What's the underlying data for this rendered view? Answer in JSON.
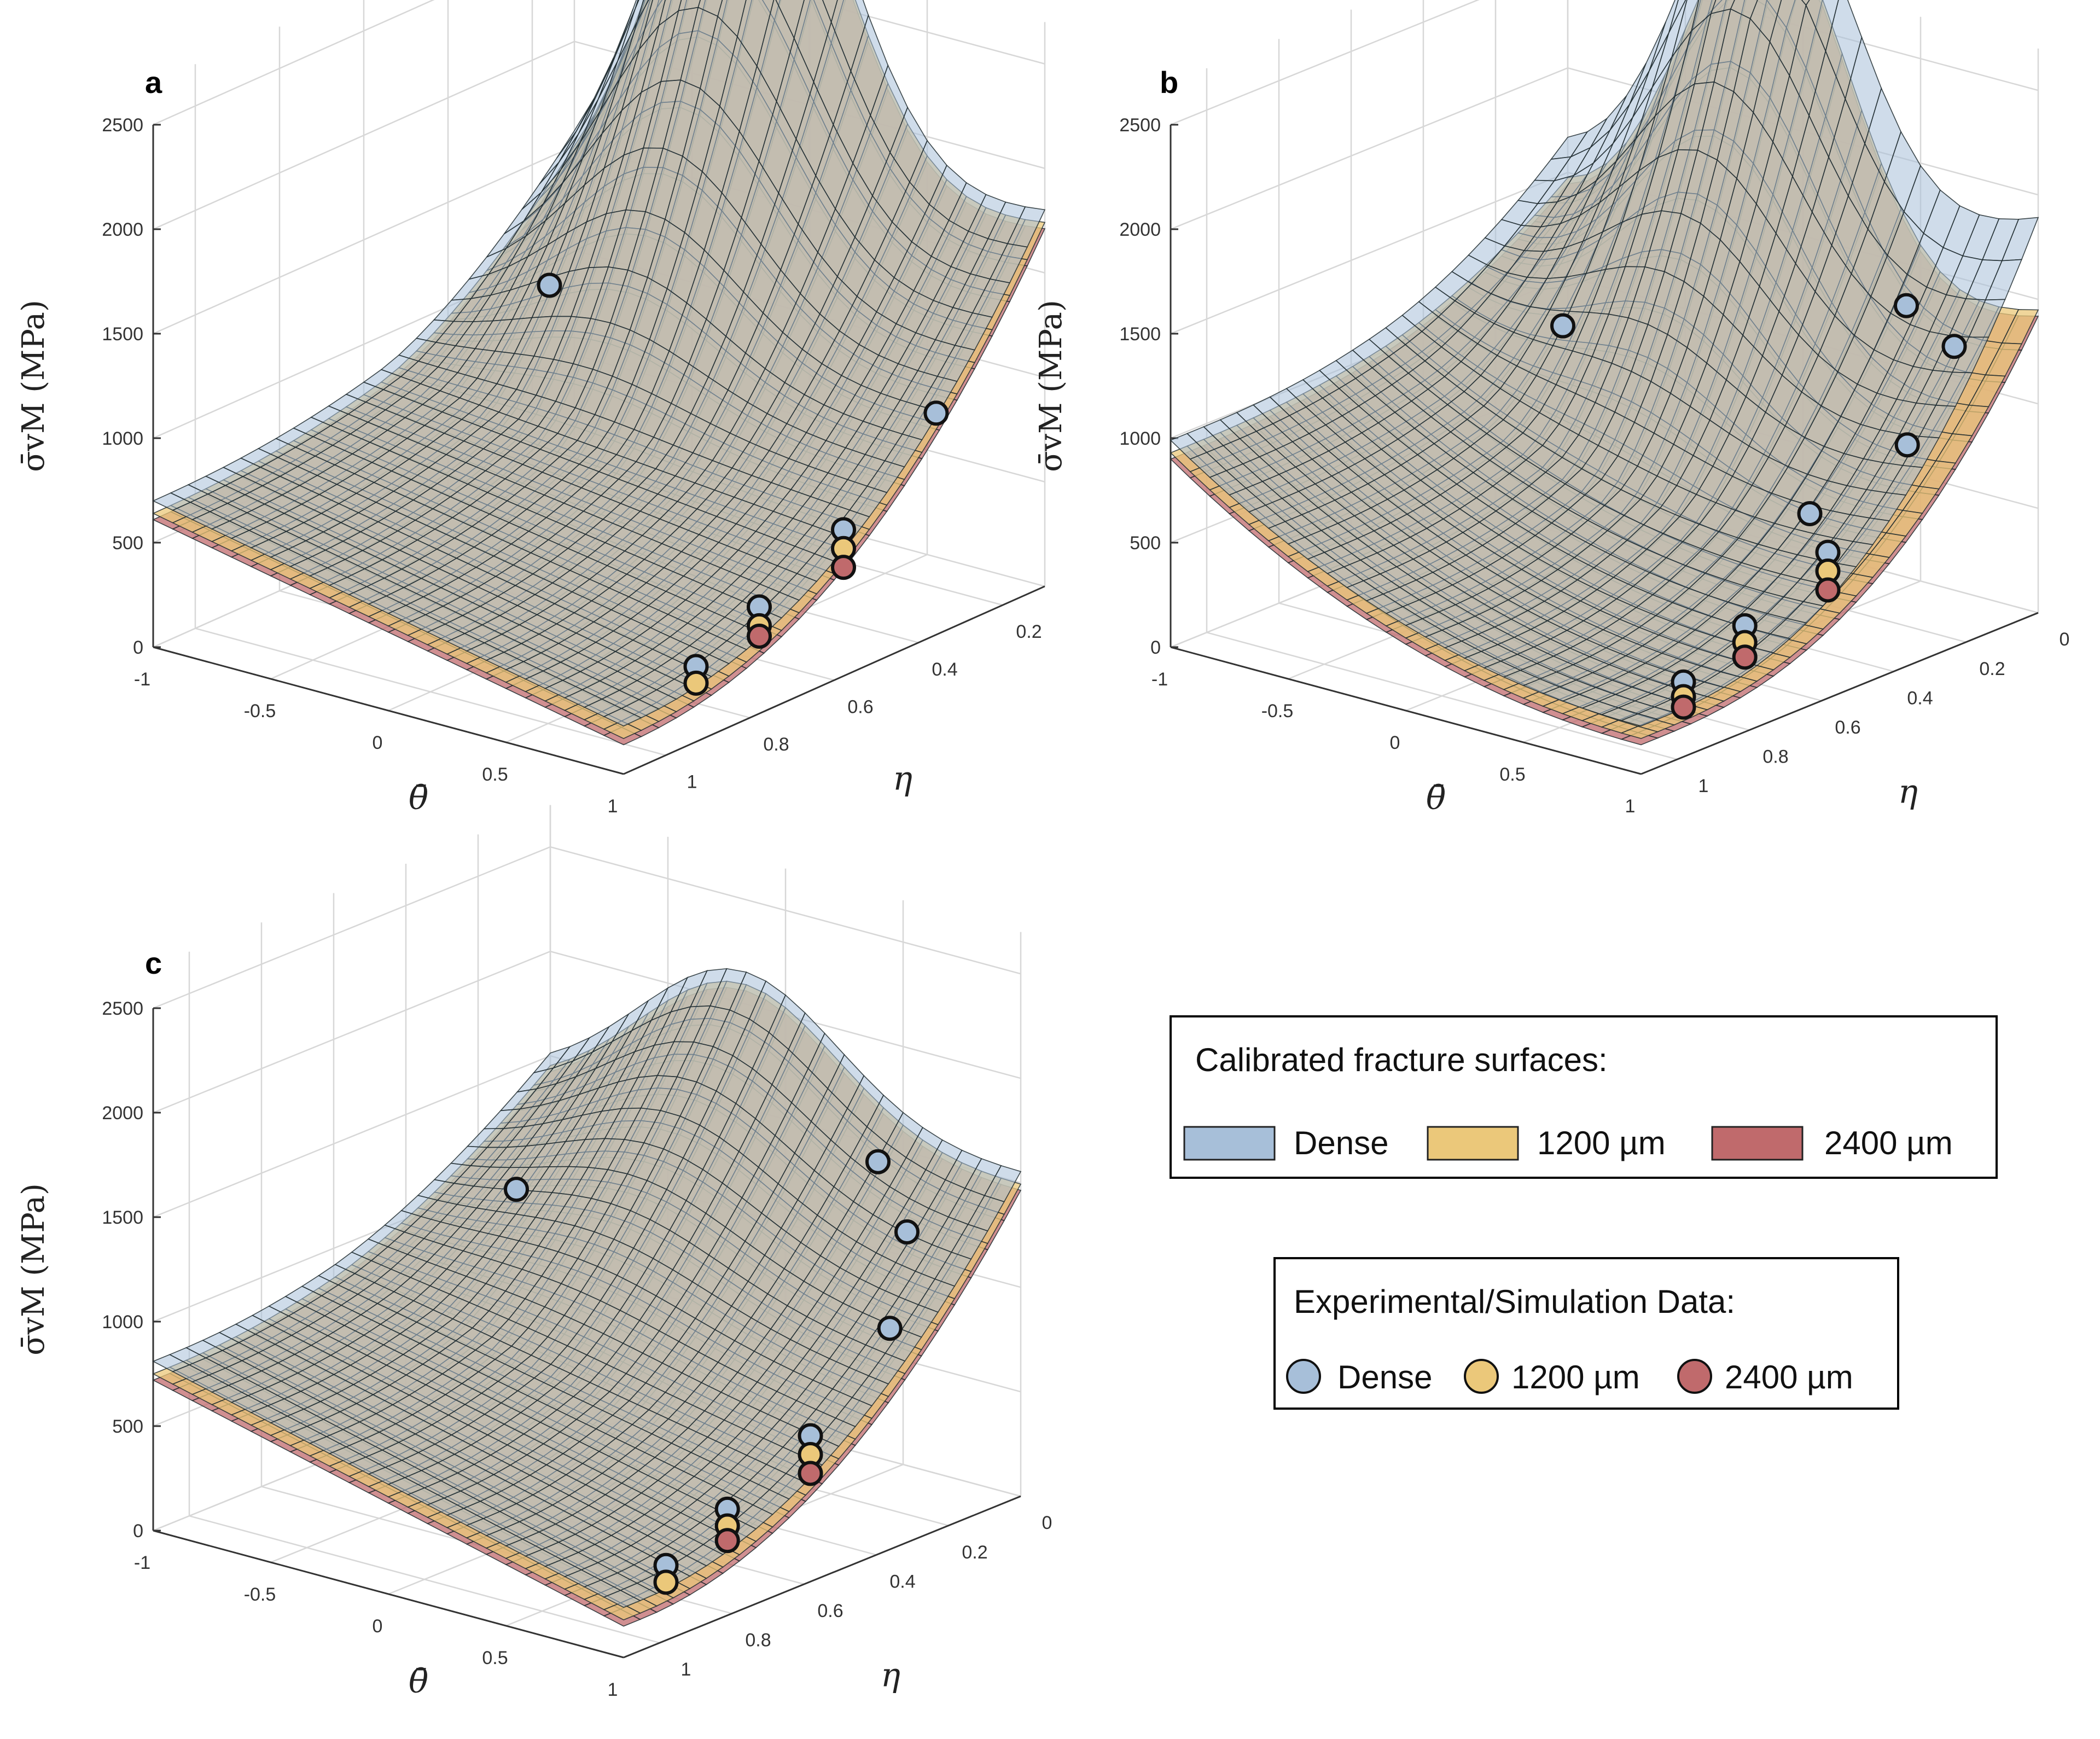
{
  "chart_data": [
    {
      "panel": "a",
      "type": "surface",
      "xlabel": "θ̄",
      "ylabel": "η",
      "zlabel": "σ̄vM (MPa)",
      "x_ticks": [
        "-1",
        "-0.5",
        "0",
        "0.5",
        "1"
      ],
      "y_ticks": [
        "0.2",
        "0.4",
        "0.6",
        "0.8",
        "1"
      ],
      "z_ticks": [
        "0",
        "500",
        "1000",
        "1500",
        "2000",
        "2500"
      ],
      "xlim": [
        -1,
        1
      ],
      "ylim": [
        0.1,
        1.1
      ],
      "zlim": [
        0,
        2500
      ],
      "surfaces": [
        {
          "name": "Dense",
          "corners": {
            "x-1_y1": 700,
            "x1_y1": 230,
            "x1_y0.1": 1760,
            "peak": 2600
          }
        },
        {
          "name": "1200 µm",
          "corners": {
            "x-1_y1": 660,
            "x1_y1": 200,
            "x1_y0.1": 1700
          }
        },
        {
          "name": "2400 µm",
          "corners": {
            "x-1_y1": 640,
            "x1_y1": 170,
            "x1_y0.1": 1640
          }
        }
      ],
      "points": [
        {
          "series": "Dense",
          "theta": -0.3,
          "eta": 0.55,
          "sigma": 1450
        },
        {
          "series": "Dense",
          "theta": 0.95,
          "eta": 0.9,
          "sigma": 320
        },
        {
          "series": "1200 µm",
          "theta": 0.95,
          "eta": 0.9,
          "sigma": 240
        },
        {
          "series": "Dense",
          "theta": 0.95,
          "eta": 0.75,
          "sigma": 470
        },
        {
          "series": "1200 µm",
          "theta": 0.95,
          "eta": 0.75,
          "sigma": 380
        },
        {
          "series": "2400 µm",
          "theta": 0.95,
          "eta": 0.75,
          "sigma": 330
        },
        {
          "series": "Dense",
          "theta": 0.95,
          "eta": 0.55,
          "sigma": 660
        },
        {
          "series": "1200 µm",
          "theta": 0.95,
          "eta": 0.55,
          "sigma": 570
        },
        {
          "series": "2400 µm",
          "theta": 0.95,
          "eta": 0.55,
          "sigma": 480
        },
        {
          "series": "Dense",
          "theta": 0.95,
          "eta": 0.33,
          "sigma": 1020
        }
      ]
    },
    {
      "panel": "b",
      "type": "surface",
      "xlabel": "θ̄",
      "ylabel": "η",
      "zlabel": "σ̄vM (MPa)",
      "x_ticks": [
        "-1",
        "-0.5",
        "0",
        "0.5",
        "1"
      ],
      "y_ticks": [
        "0",
        "0.2",
        "0.4",
        "0.6",
        "0.8",
        "1"
      ],
      "z_ticks": [
        "0",
        "500",
        "1000",
        "1500",
        "2000",
        "2500"
      ],
      "xlim": [
        -1,
        1
      ],
      "ylim": [
        0,
        1.1
      ],
      "zlim": [
        0,
        2500
      ],
      "surfaces": [
        {
          "name": "Dense",
          "corners": {
            "x-1_y1": 960,
            "x1_y1": 230,
            "x1_y0": 1670
          }
        },
        {
          "name": "1200 µm",
          "corners": {
            "x-1_y1": 990,
            "x1_y1": 200,
            "x1_y0": 1360
          }
        },
        {
          "name": "2400 µm",
          "corners": {
            "x-1_y1": 1010,
            "x1_y1": 180,
            "x1_y0": 1310
          }
        }
      ],
      "points": [
        {
          "series": "Dense",
          "theta": -0.1,
          "eta": 0.6,
          "sigma": 1460
        },
        {
          "series": "Dense",
          "theta": 0.9,
          "eta": 0.3,
          "sigma": 1650
        },
        {
          "series": "Dense",
          "theta": 0.95,
          "eta": 0.2,
          "sigma": 1400
        },
        {
          "series": "Dense",
          "theta": 0.95,
          "eta": 0.6,
          "sigma": 880
        },
        {
          "series": "Dense",
          "theta": 0.95,
          "eta": 0.33,
          "sigma": 1020
        },
        {
          "series": "Dense",
          "theta": 0.95,
          "eta": 0.95,
          "sigma": 320
        },
        {
          "series": "1200 µm",
          "theta": 0.95,
          "eta": 0.95,
          "sigma": 250
        },
        {
          "series": "2400 µm",
          "theta": 0.95,
          "eta": 0.95,
          "sigma": 200
        },
        {
          "series": "Dense",
          "theta": 0.95,
          "eta": 0.78,
          "sigma": 470
        },
        {
          "series": "1200 µm",
          "theta": 0.95,
          "eta": 0.78,
          "sigma": 390
        },
        {
          "series": "2400 µm",
          "theta": 0.95,
          "eta": 0.78,
          "sigma": 320
        },
        {
          "series": "Dense",
          "theta": 0.95,
          "eta": 0.55,
          "sigma": 660
        },
        {
          "series": "1200 µm",
          "theta": 0.95,
          "eta": 0.55,
          "sigma": 570
        },
        {
          "series": "2400 µm",
          "theta": 0.95,
          "eta": 0.55,
          "sigma": 480
        }
      ]
    },
    {
      "panel": "c",
      "type": "surface",
      "xlabel": "θ̄",
      "ylabel": "η",
      "zlabel": "σ̄vM (MPa)",
      "x_ticks": [
        "-1",
        "-0.5",
        "0",
        "0.5",
        "1"
      ],
      "y_ticks": [
        "0",
        "0.2",
        "0.4",
        "0.6",
        "0.8",
        "1"
      ],
      "z_ticks": [
        "0",
        "500",
        "1000",
        "1500",
        "2000",
        "2500"
      ],
      "xlim": [
        -1,
        1
      ],
      "ylim": [
        0,
        1.1
      ],
      "zlim": [
        0,
        2500
      ],
      "surfaces": [
        {
          "name": "Dense",
          "corners": {
            "x-1_y1": 810,
            "x1_y1": 240,
            "x1_y0": 1400,
            "peak": 2250
          }
        },
        {
          "name": "1200 µm",
          "corners": {
            "x-1_y1": 740,
            "x1_y1": 200,
            "x1_y0": 1310
          }
        },
        {
          "name": "2400 µm",
          "corners": {
            "x-1_y1": 710,
            "x1_y1": 170,
            "x1_y0": 1280
          }
        }
      ],
      "points": [
        {
          "series": "Dense",
          "theta": -0.3,
          "eta": 0.55,
          "sigma": 1460
        },
        {
          "series": "Dense",
          "theta": 0.7,
          "eta": 0.2,
          "sigma": 1650
        },
        {
          "series": "Dense",
          "theta": 0.9,
          "eta": 0.25,
          "sigma": 1410
        },
        {
          "series": "Dense",
          "theta": 0.95,
          "eta": 0.33,
          "sigma": 1020
        },
        {
          "series": "Dense",
          "theta": 0.95,
          "eta": 0.95,
          "sigma": 320
        },
        {
          "series": "1200 µm",
          "theta": 0.95,
          "eta": 0.95,
          "sigma": 240
        },
        {
          "series": "Dense",
          "theta": 0.95,
          "eta": 0.78,
          "sigma": 470
        },
        {
          "series": "1200 µm",
          "theta": 0.95,
          "eta": 0.78,
          "sigma": 390
        },
        {
          "series": "2400 µm",
          "theta": 0.95,
          "eta": 0.78,
          "sigma": 320
        },
        {
          "series": "Dense",
          "theta": 0.95,
          "eta": 0.55,
          "sigma": 660
        },
        {
          "series": "1200 µm",
          "theta": 0.95,
          "eta": 0.55,
          "sigma": 570
        },
        {
          "series": "2400 µm",
          "theta": 0.95,
          "eta": 0.55,
          "sigma": 480
        }
      ]
    }
  ],
  "legend_surfaces": {
    "title": "Calibrated fracture surfaces:",
    "items": [
      {
        "label": "Dense",
        "color": "#a7bfd9"
      },
      {
        "label": "1200 µm",
        "color": "#ebc87a"
      },
      {
        "label": "2400 µm",
        "color": "#c06a6c"
      }
    ]
  },
  "legend_points": {
    "title": "Experimental/Simulation Data:",
    "items": [
      {
        "label": "Dense",
        "color": "#a7bfd9"
      },
      {
        "label": "1200 µm",
        "color": "#ebc87a"
      },
      {
        "label": "2400 µm",
        "color": "#c06a6c"
      }
    ]
  },
  "colors": {
    "dense": "#a7bfd9",
    "p1200": "#ebc87a",
    "p2400": "#c06a6c",
    "mesh": "#1e2a2e"
  }
}
